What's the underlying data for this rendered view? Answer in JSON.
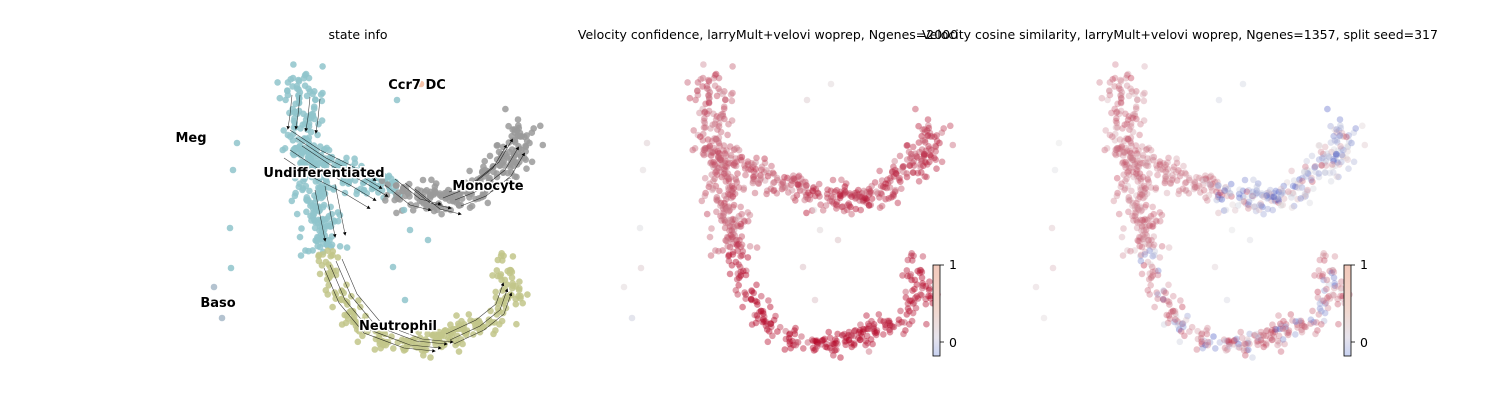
{
  "chart_data": [
    {
      "type": "scatter",
      "title": "state info",
      "clusters": [
        {
          "name": "Undifferentiated",
          "color": "#8fc4cb"
        },
        {
          "name": "Monocyte",
          "color": "#9a9a9a"
        },
        {
          "name": "Neutrophil",
          "color": "#c2c68a"
        },
        {
          "name": "Meg",
          "color": "#8fc4cb"
        },
        {
          "name": "Baso",
          "color": "#a7b8c8"
        },
        {
          "name": "Ccr7 DC",
          "color": "#f3b99a"
        }
      ],
      "streamlines": true,
      "axes_visible": false
    },
    {
      "type": "scatter",
      "title": "Velocity confidence, larryMult+velovi woprep, Ngenes=2000",
      "colormap": "coolwarm",
      "colorbar": {
        "ticks": [
          "0",
          "1"
        ],
        "range": [
          -0.2,
          1
        ]
      },
      "axes_visible": false
    },
    {
      "type": "scatter",
      "title": "Velocity cosine similarity, larryMult+velovi woprep, Ngenes=1357, split seed=317",
      "colormap": "coolwarm",
      "colorbar": {
        "ticks": [
          "0",
          "1"
        ],
        "range": [
          -0.2,
          1
        ]
      },
      "axes_visible": false
    }
  ]
}
